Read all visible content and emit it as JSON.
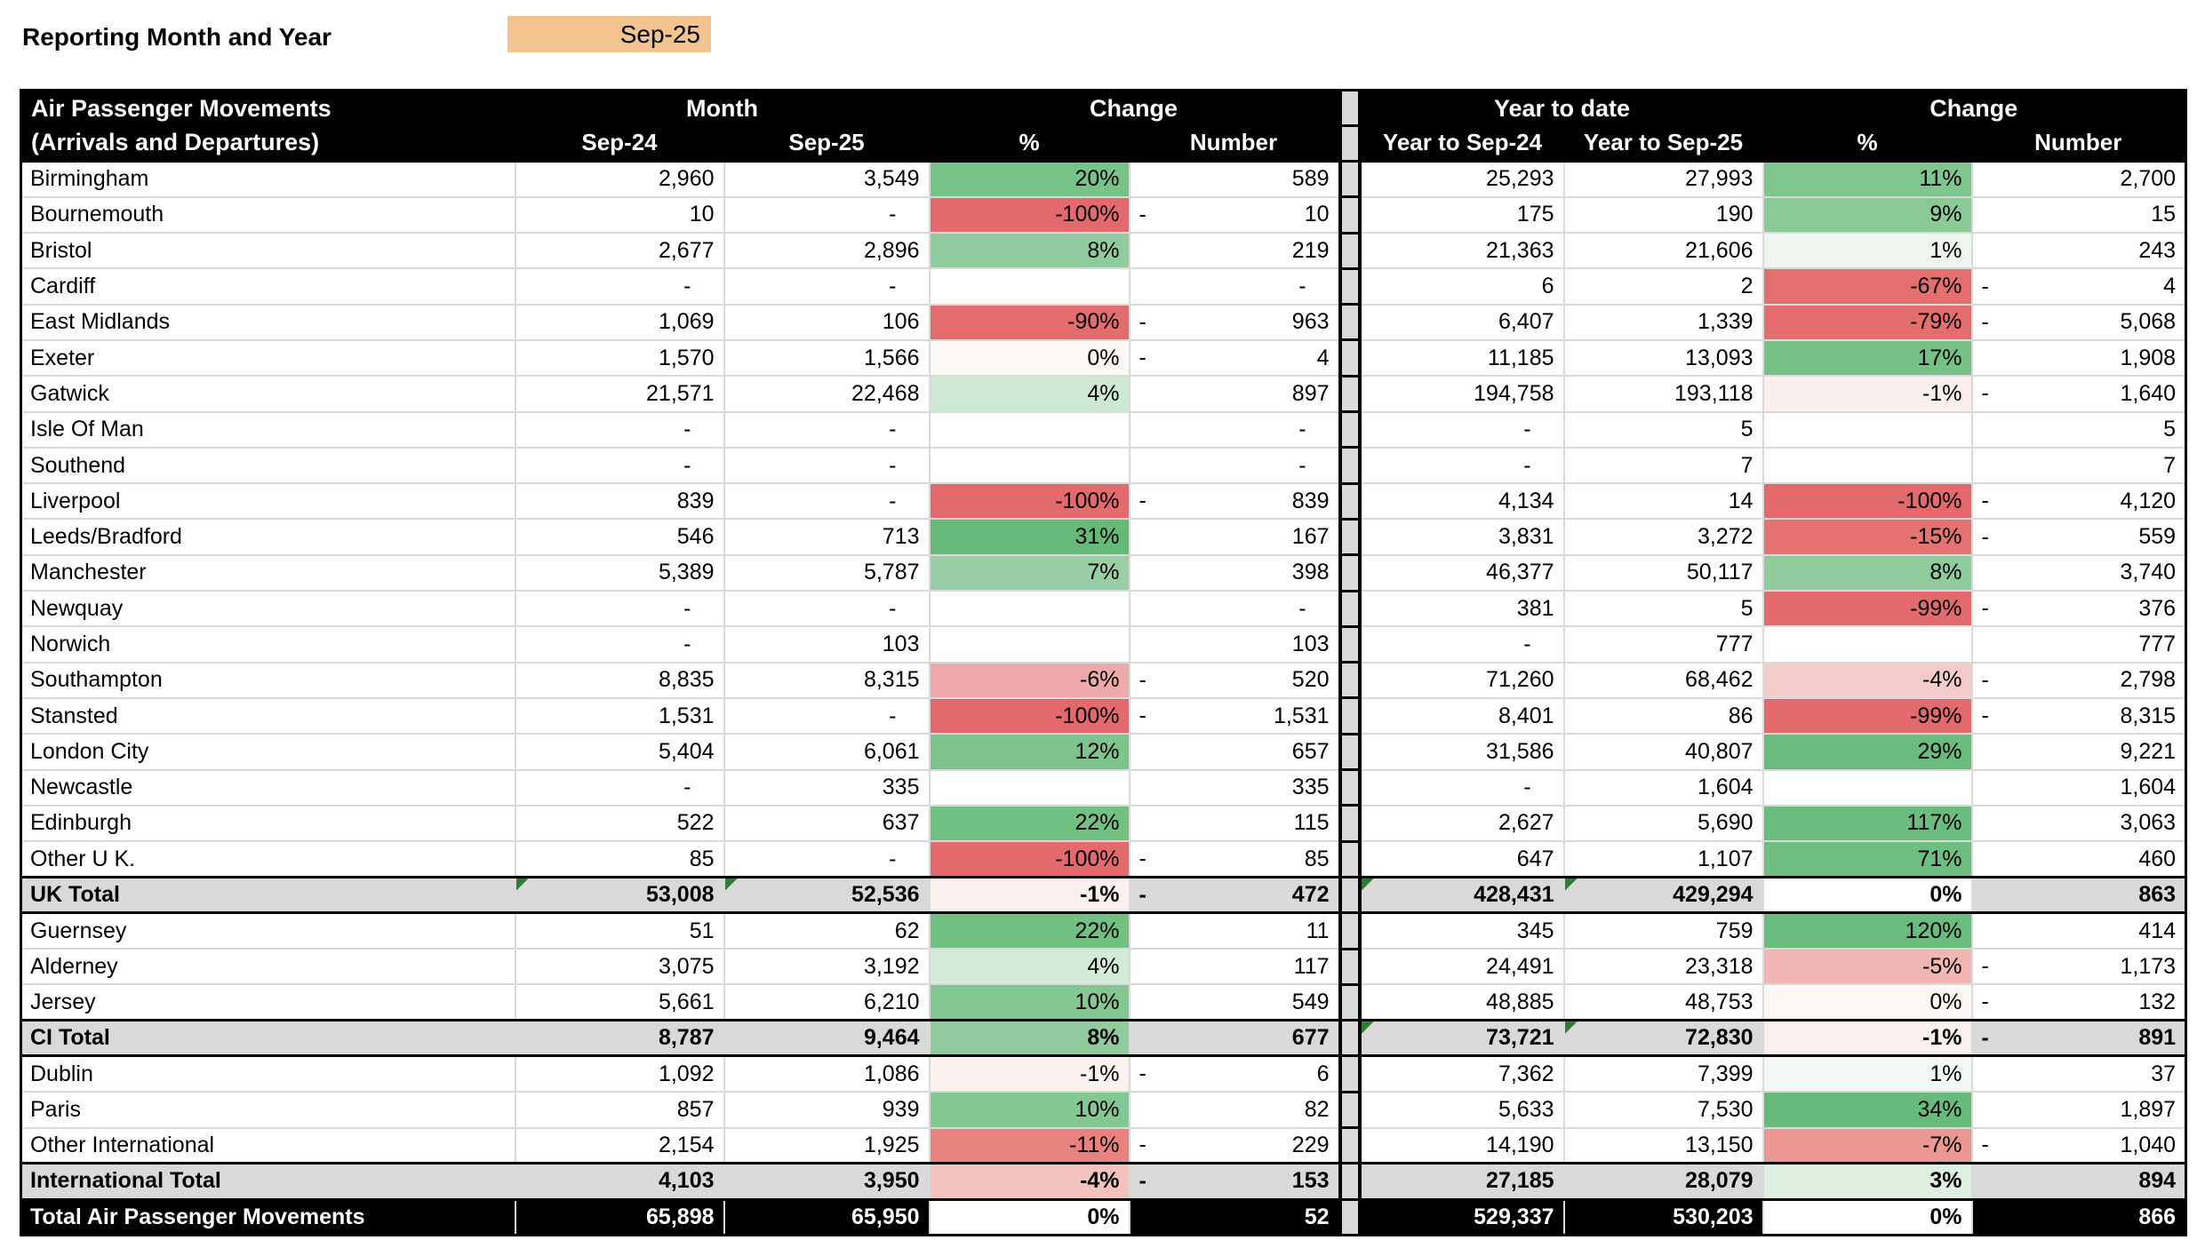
{
  "report": {
    "label": "Reporting Month and Year",
    "value": "Sep-25"
  },
  "colors": {
    "accent_orange": "#F3C390",
    "header_bg": "#000000",
    "header_text": "#FFFFFF",
    "subtotal_bg": "#D9D9D9",
    "separator_bg": "#D9D9D9",
    "gridline": "#D9D9D9",
    "triangle_green": "#2E7D32",
    "positive_strong": "#65BA79",
    "negative_strong": "#E3696C"
  },
  "table": {
    "header": {
      "title1": "Air Passenger Movements",
      "title2": "(Arrivals and Departures)",
      "month_group": "Month",
      "change_group1": "Change",
      "ytd_group": "Year to date",
      "change_group2": "Change",
      "sep24": "Sep-24",
      "sep25": "Sep-25",
      "pct1": "%",
      "num1": "Number",
      "ytd24": "Year to Sep-24",
      "ytd25": "Year to Sep-25",
      "pct2": "%",
      "num2": "Number"
    },
    "rows": [
      {
        "name": "Birmingham",
        "type": "n",
        "m24": "2,960",
        "m25": "3,549",
        "p1": "20%",
        "p1bg": "#77C287",
        "n1": "589",
        "n1m": false,
        "y24": "25,293",
        "y25": "27,993",
        "p2": "11%",
        "p2bg": "#7FC58E",
        "n2": "2,700",
        "n2m": false
      },
      {
        "name": "Bournemouth",
        "type": "n",
        "m24": "10",
        "m25": "-",
        "p1": "-100%",
        "p1bg": "#E3696C",
        "n1": "10",
        "n1m": true,
        "y24": "175",
        "y25": "190",
        "p2": "9%",
        "p2bg": "#89CA96",
        "n2": "15",
        "n2m": false
      },
      {
        "name": "Bristol",
        "type": "n",
        "m24": "2,677",
        "m25": "2,896",
        "p1": "8%",
        "p1bg": "#8FCB9C",
        "n1": "219",
        "n1m": false,
        "y24": "21,363",
        "y25": "21,606",
        "p2": "1%",
        "p2bg": "#EFF6F0",
        "n2": "243",
        "n2m": false
      },
      {
        "name": "Cardiff",
        "type": "n",
        "m24": "-",
        "m25": "-",
        "p1": "",
        "n1": "-",
        "n1m": false,
        "y24": "6",
        "y25": "2",
        "p2": "-67%",
        "p2bg": "#E46F6F",
        "n2": "4",
        "n2m": true
      },
      {
        "name": "East Midlands",
        "type": "n",
        "m24": "1,069",
        "m25": "106",
        "p1": "-90%",
        "p1bg": "#E36C6D",
        "n1": "963",
        "n1m": true,
        "y24": "6,407",
        "y25": "1,339",
        "p2": "-79%",
        "p2bg": "#E46D6E",
        "n2": "5,068",
        "n2m": true
      },
      {
        "name": "Exeter",
        "type": "n",
        "m24": "1,570",
        "m25": "1,566",
        "p1": "0%",
        "p1bg": "#FCF8F5",
        "n1": "4",
        "n1m": true,
        "y24": "11,185",
        "y25": "13,093",
        "p2": "17%",
        "p2bg": "#76C185",
        "n2": "1,908",
        "n2m": false
      },
      {
        "name": "Gatwick",
        "type": "n",
        "m24": "21,571",
        "m25": "22,468",
        "p1": "4%",
        "p1bg": "#CDE8D3",
        "n1": "897",
        "n1m": false,
        "y24": "194,758",
        "y25": "193,118",
        "p2": "-1%",
        "p2bg": "#FBEFED",
        "n2": "1,640",
        "n2m": true
      },
      {
        "name": "Isle Of Man",
        "type": "n",
        "m24": "-",
        "m25": "-",
        "p1": "",
        "n1": "-",
        "n1m": false,
        "y24": "-",
        "y25": "5",
        "p2": "",
        "n2": "5",
        "n2m": false
      },
      {
        "name": "Southend",
        "type": "n",
        "m24": "-",
        "m25": "-",
        "p1": "",
        "n1": "-",
        "n1m": false,
        "y24": "-",
        "y25": "7",
        "p2": "",
        "n2": "7",
        "n2m": false
      },
      {
        "name": "Liverpool",
        "type": "n",
        "m24": "839",
        "m25": "-",
        "p1": "-100%",
        "p1bg": "#E3696C",
        "n1": "839",
        "n1m": true,
        "y24": "4,134",
        "y25": "14",
        "p2": "-100%",
        "p2bg": "#E3696C",
        "n2": "4,120",
        "n2m": true
      },
      {
        "name": "Leeds/Bradford",
        "type": "n",
        "m24": "546",
        "m25": "713",
        "p1": "31%",
        "p1bg": "#65BA79",
        "n1": "167",
        "n1m": false,
        "y24": "3,831",
        "y25": "3,272",
        "p2": "-15%",
        "p2bg": "#E57372",
        "n2": "559",
        "n2m": true
      },
      {
        "name": "Manchester",
        "type": "n",
        "m24": "5,389",
        "m25": "5,787",
        "p1": "7%",
        "p1bg": "#9ACFA6",
        "n1": "398",
        "n1m": false,
        "y24": "46,377",
        "y25": "50,117",
        "p2": "8%",
        "p2bg": "#8FCB9C",
        "n2": "3,740",
        "n2m": false
      },
      {
        "name": "Newquay",
        "type": "n",
        "m24": "-",
        "m25": "-",
        "p1": "",
        "n1": "-",
        "n1m": false,
        "y24": "381",
        "y25": "5",
        "p2": "-99%",
        "p2bg": "#E36A6C",
        "n2": "376",
        "n2m": true
      },
      {
        "name": "Norwich",
        "type": "n",
        "m24": "-",
        "m25": "103",
        "p1": "",
        "n1": "103",
        "n1m": false,
        "y24": "-",
        "y25": "777",
        "p2": "",
        "n2": "777",
        "n2m": false
      },
      {
        "name": "Southampton",
        "type": "n",
        "m24": "8,835",
        "m25": "8,315",
        "p1": "-6%",
        "p1bg": "#EEA9AB",
        "n1": "520",
        "n1m": true,
        "y24": "71,260",
        "y25": "68,462",
        "p2": "-4%",
        "p2bg": "#F5CBC9",
        "n2": "2,798",
        "n2m": true
      },
      {
        "name": "Stansted",
        "type": "n",
        "m24": "1,531",
        "m25": "-",
        "p1": "-100%",
        "p1bg": "#E3696C",
        "n1": "1,531",
        "n1m": true,
        "y24": "8,401",
        "y25": "86",
        "p2": "-99%",
        "p2bg": "#E36A6C",
        "n2": "8,315",
        "n2m": true
      },
      {
        "name": "London City",
        "type": "n",
        "m24": "5,404",
        "m25": "6,061",
        "p1": "12%",
        "p1bg": "#7CC48C",
        "n1": "657",
        "n1m": false,
        "y24": "31,586",
        "y25": "40,807",
        "p2": "29%",
        "p2bg": "#69BC7C",
        "n2": "9,221",
        "n2m": false
      },
      {
        "name": "Newcastle",
        "type": "n",
        "m24": "-",
        "m25": "335",
        "p1": "",
        "n1": "335",
        "n1m": false,
        "y24": "-",
        "y25": "1,604",
        "p2": "",
        "n2": "1,604",
        "n2m": false
      },
      {
        "name": "Edinburgh",
        "type": "n",
        "m24": "522",
        "m25": "637",
        "p1": "22%",
        "p1bg": "#73C083",
        "n1": "115",
        "n1m": false,
        "y24": "2,627",
        "y25": "5,690",
        "p2": "117%",
        "p2bg": "#6ABD7E",
        "n2": "3,063",
        "n2m": false
      },
      {
        "name": "Other U K.",
        "type": "n",
        "m24": "85",
        "m25": "-",
        "p1": "-100%",
        "p1bg": "#E3696C",
        "n1": "85",
        "n1m": true,
        "y24": "647",
        "y25": "1,107",
        "p2": "71%",
        "p2bg": "#6DBE80",
        "n2": "460",
        "n2m": false
      },
      {
        "name": "UK Total",
        "type": "sub",
        "m24": "53,008",
        "m25": "52,536",
        "p1": "-1%",
        "p1bg": "#FAF0EE",
        "n1": "472",
        "n1m": true,
        "y24": "428,431",
        "y25": "429,294",
        "p2": "0%",
        "p2bg": "#FFFFFF",
        "n2": "863",
        "n2m": false,
        "tri": [
          "m24",
          "m25",
          "y24",
          "y25"
        ]
      },
      {
        "name": "Guernsey",
        "type": "n",
        "m24": "51",
        "m25": "62",
        "p1": "22%",
        "p1bg": "#73C083",
        "n1": "11",
        "n1m": false,
        "y24": "345",
        "y25": "759",
        "p2": "120%",
        "p2bg": "#69BC7D",
        "n2": "414",
        "n2m": false
      },
      {
        "name": "Alderney",
        "type": "n",
        "m24": "3,075",
        "m25": "3,192",
        "p1": "4%",
        "p1bg": "#D4EBDA",
        "n1": "117",
        "n1m": false,
        "y24": "24,491",
        "y25": "23,318",
        "p2": "-5%",
        "p2bg": "#F1B5B3",
        "n2": "1,173",
        "n2m": true
      },
      {
        "name": "Jersey",
        "type": "n",
        "m24": "5,661",
        "m25": "6,210",
        "p1": "10%",
        "p1bg": "#83C792",
        "n1": "549",
        "n1m": false,
        "y24": "48,885",
        "y25": "48,753",
        "p2": "0%",
        "p2bg": "#FDF8F6",
        "n2": "132",
        "n2m": true
      },
      {
        "name": "CI Total",
        "type": "sub",
        "m24": "8,787",
        "m25": "9,464",
        "p1": "8%",
        "p1bg": "#8FCB9C",
        "n1": "677",
        "n1m": false,
        "y24": "73,721",
        "y25": "72,830",
        "p2": "-1%",
        "p2bg": "#FAF0EE",
        "n2": "891",
        "n2m": true,
        "tri": [
          "y24",
          "y25"
        ]
      },
      {
        "name": "Dublin",
        "type": "n",
        "m24": "1,092",
        "m25": "1,086",
        "p1": "-1%",
        "p1bg": "#FCF3F1",
        "n1": "6",
        "n1m": true,
        "y24": "7,362",
        "y25": "7,399",
        "p2": "1%",
        "p2bg": "#F2F8F3",
        "n2": "37",
        "n2m": false
      },
      {
        "name": "Paris",
        "type": "n",
        "m24": "857",
        "m25": "939",
        "p1": "10%",
        "p1bg": "#83C792",
        "n1": "82",
        "n1m": false,
        "y24": "5,633",
        "y25": "7,530",
        "p2": "34%",
        "p2bg": "#66BB7A",
        "n2": "1,897",
        "n2m": false
      },
      {
        "name": "Other International",
        "type": "n",
        "m24": "2,154",
        "m25": "1,925",
        "p1": "-11%",
        "p1bg": "#E8827F",
        "n1": "229",
        "n1m": true,
        "y24": "14,190",
        "y25": "13,150",
        "p2": "-7%",
        "p2bg": "#EC9792",
        "n2": "1,040",
        "n2m": true
      },
      {
        "name": "International Total",
        "type": "sub",
        "m24": "4,103",
        "m25": "3,950",
        "p1": "-4%",
        "p1bg": "#F3C1BE",
        "n1": "153",
        "n1m": true,
        "y24": "27,185",
        "y25": "28,079",
        "p2": "3%",
        "p2bg": "#DCEFE1",
        "n2": "894",
        "n2m": false
      },
      {
        "name": "Total Air Passenger Movements",
        "type": "grand",
        "m24": "65,898",
        "m25": "65,950",
        "p1": "0%",
        "p1bg": "#FFFFFF",
        "n1": "52",
        "n1m": false,
        "y24": "529,337",
        "y25": "530,203",
        "p2": "0%",
        "p2bg": "#FFFFFF",
        "n2": "866",
        "n2m": false
      }
    ]
  }
}
